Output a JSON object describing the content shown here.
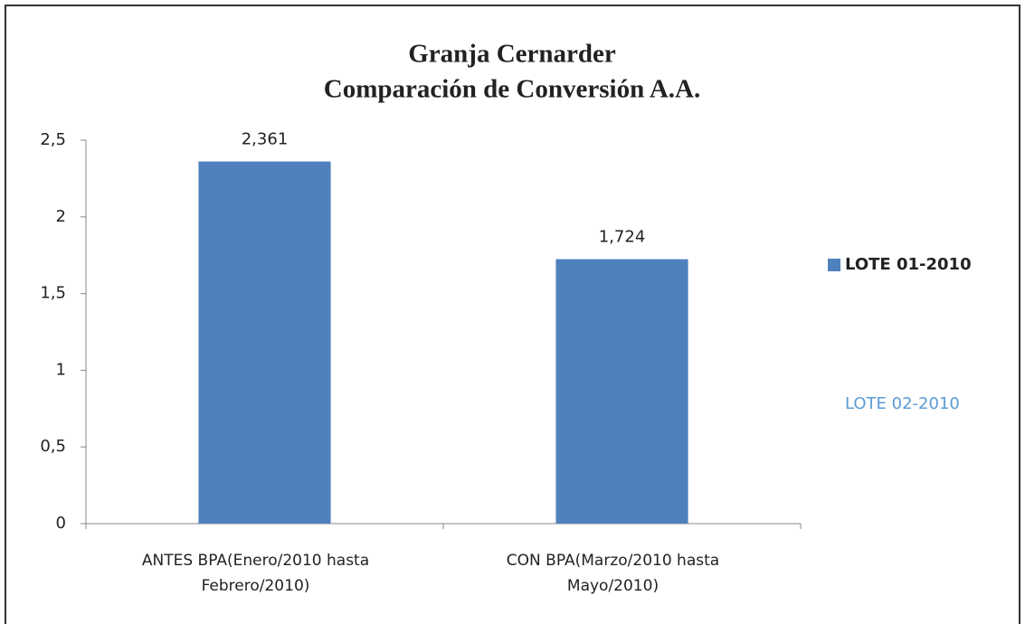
{
  "chart_data": {
    "type": "bar",
    "title": "Granja Cernarder",
    "subtitle": "Comparación de Conversión A.A.",
    "categories": [
      "ANTES BPA(Enero/2010 hasta Febrero/2010)",
      "CON BPA(Marzo/2010 hasta Mayo/2010)"
    ],
    "series": [
      {
        "name": "LOTE 01-2010",
        "color": "#4f81bd",
        "legend_text_color": "#222222",
        "values": [
          2.361,
          1.724
        ],
        "value_labels": [
          "2,361",
          "1,724"
        ]
      },
      {
        "name": "LOTE 02-2010",
        "color": "#5b9bd5",
        "legend_text_color": "#5b9bd5",
        "values": [
          null,
          null
        ]
      }
    ],
    "ylim": [
      0,
      2.5
    ],
    "yticks": [
      0,
      {
        "value": 0.5,
        "label": "0,5"
      },
      1,
      {
        "value": 1.5,
        "label": "1,5"
      },
      2,
      {
        "value": 2.5,
        "label": "2,5"
      }
    ],
    "grid": false,
    "legend": "right"
  }
}
